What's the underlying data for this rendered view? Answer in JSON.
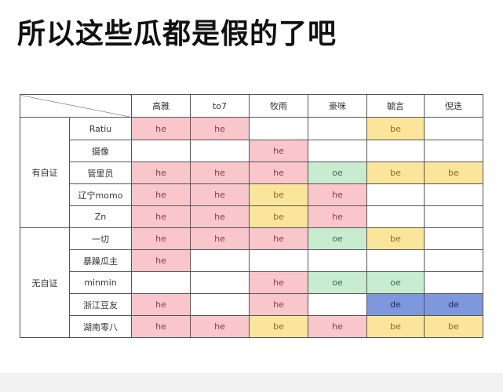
{
  "title": "所以这些瓜都是假的了吧",
  "columns": [
    "高雅",
    "to7",
    "牧雨",
    "豪咪",
    "毓言",
    "倪迭"
  ],
  "groups": [
    {
      "label": "有自证",
      "rows": [
        {
          "name": "Ratiu",
          "cells": [
            "he",
            "he",
            "",
            "",
            "be",
            ""
          ]
        },
        {
          "name": "摄像",
          "cells": [
            "",
            "",
            "he",
            "",
            "",
            ""
          ]
        },
        {
          "name": "管里员",
          "cells": [
            "he",
            "he",
            "he",
            "oe",
            "be",
            "be"
          ]
        },
        {
          "name": "辽宁momo",
          "cells": [
            "he",
            "he",
            "be",
            "he",
            "",
            ""
          ]
        },
        {
          "name": "Zn",
          "cells": [
            "he",
            "he",
            "be",
            "he",
            "",
            ""
          ]
        }
      ]
    },
    {
      "label": "无自证",
      "rows": [
        {
          "name": "一切",
          "cells": [
            "he",
            "he",
            "he",
            "oe",
            "be",
            ""
          ]
        },
        {
          "name": "暴躁瓜主",
          "cells": [
            "he",
            "",
            "",
            "",
            "",
            ""
          ]
        },
        {
          "name": "minmin",
          "cells": [
            "",
            "",
            "he",
            "oe",
            "oe",
            ""
          ]
        },
        {
          "name": "浙江豆友",
          "cells": [
            "he",
            "",
            "he",
            "",
            "de",
            "de"
          ]
        },
        {
          "name": "湖南零八",
          "cells": [
            "he",
            "he",
            "be",
            "he",
            "be",
            "be"
          ]
        }
      ]
    }
  ],
  "colors": {
    "he": "#f9c6cc",
    "be": "#fbe59a",
    "oe": "#c8ecd0",
    "de": "#7f97dc"
  }
}
